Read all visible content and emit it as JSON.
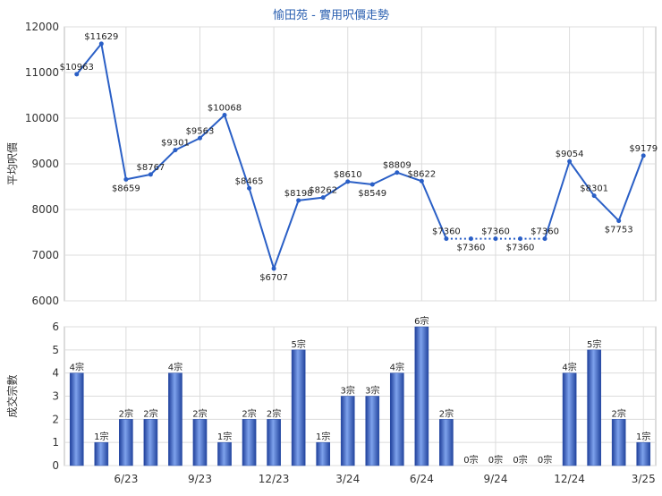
{
  "chart_data": [
    {
      "type": "line",
      "title": "愉田苑 - 實用呎價走勢",
      "ylabel": "平均呎價",
      "ylim": [
        6000,
        12000
      ],
      "yticks": [
        6000,
        7000,
        8000,
        9000,
        10000,
        11000,
        12000
      ],
      "x_tick_labels": [
        "6/23",
        "9/23",
        "12/23",
        "3/24",
        "6/24",
        "9/24",
        "12/24",
        "3/25"
      ],
      "x_tick_indices": [
        2,
        5,
        8,
        11,
        14,
        17,
        20,
        23
      ],
      "grid": true,
      "series": [
        {
          "color": "#2a5fc6",
          "labels": [
            "$10963",
            "$11629",
            "$8659",
            "$8767",
            "$9301",
            "$9563",
            "$10068",
            "$8465",
            "$6707",
            "$8198",
            "$8262",
            "$8610",
            "$8549",
            "$8809",
            "$8622",
            "$7360",
            "$7360",
            "$7360",
            "$7360",
            "$7360",
            "$9054",
            "$8301",
            "$7753",
            "$9179"
          ],
          "values": [
            10963,
            11629,
            8659,
            8767,
            9301,
            9563,
            10068,
            8465,
            6707,
            8198,
            8262,
            8610,
            8549,
            8809,
            8622,
            7360,
            7360,
            7360,
            7360,
            7360,
            9054,
            8301,
            7753,
            9179
          ],
          "dotted_from_index": 15,
          "dotted_to_index": 19
        }
      ]
    },
    {
      "type": "bar",
      "ylabel": "成交宗數",
      "ylim": [
        0,
        6
      ],
      "yticks": [
        0,
        1,
        2,
        3,
        4,
        5,
        6
      ],
      "x_tick_labels": [
        "6/23",
        "9/23",
        "12/23",
        "3/24",
        "6/24",
        "9/24",
        "12/24",
        "3/25"
      ],
      "x_tick_indices": [
        2,
        5,
        8,
        11,
        14,
        17,
        20,
        23
      ],
      "grid": true,
      "series": [
        {
          "color": "#3f6fd0",
          "values": [
            4,
            1,
            2,
            2,
            4,
            2,
            1,
            2,
            2,
            5,
            1,
            3,
            3,
            4,
            6,
            2,
            0,
            0,
            0,
            0,
            4,
            5,
            2,
            1
          ],
          "labels": [
            "4宗",
            "1宗",
            "2宗",
            "2宗",
            "4宗",
            "2宗",
            "1宗",
            "2宗",
            "2宗",
            "5宗",
            "1宗",
            "3宗",
            "3宗",
            "4宗",
            "6宗",
            "2宗",
            "0宗",
            "0宗",
            "0宗",
            "0宗",
            "4宗",
            "5宗",
            "2宗",
            "1宗"
          ]
        }
      ]
    }
  ]
}
